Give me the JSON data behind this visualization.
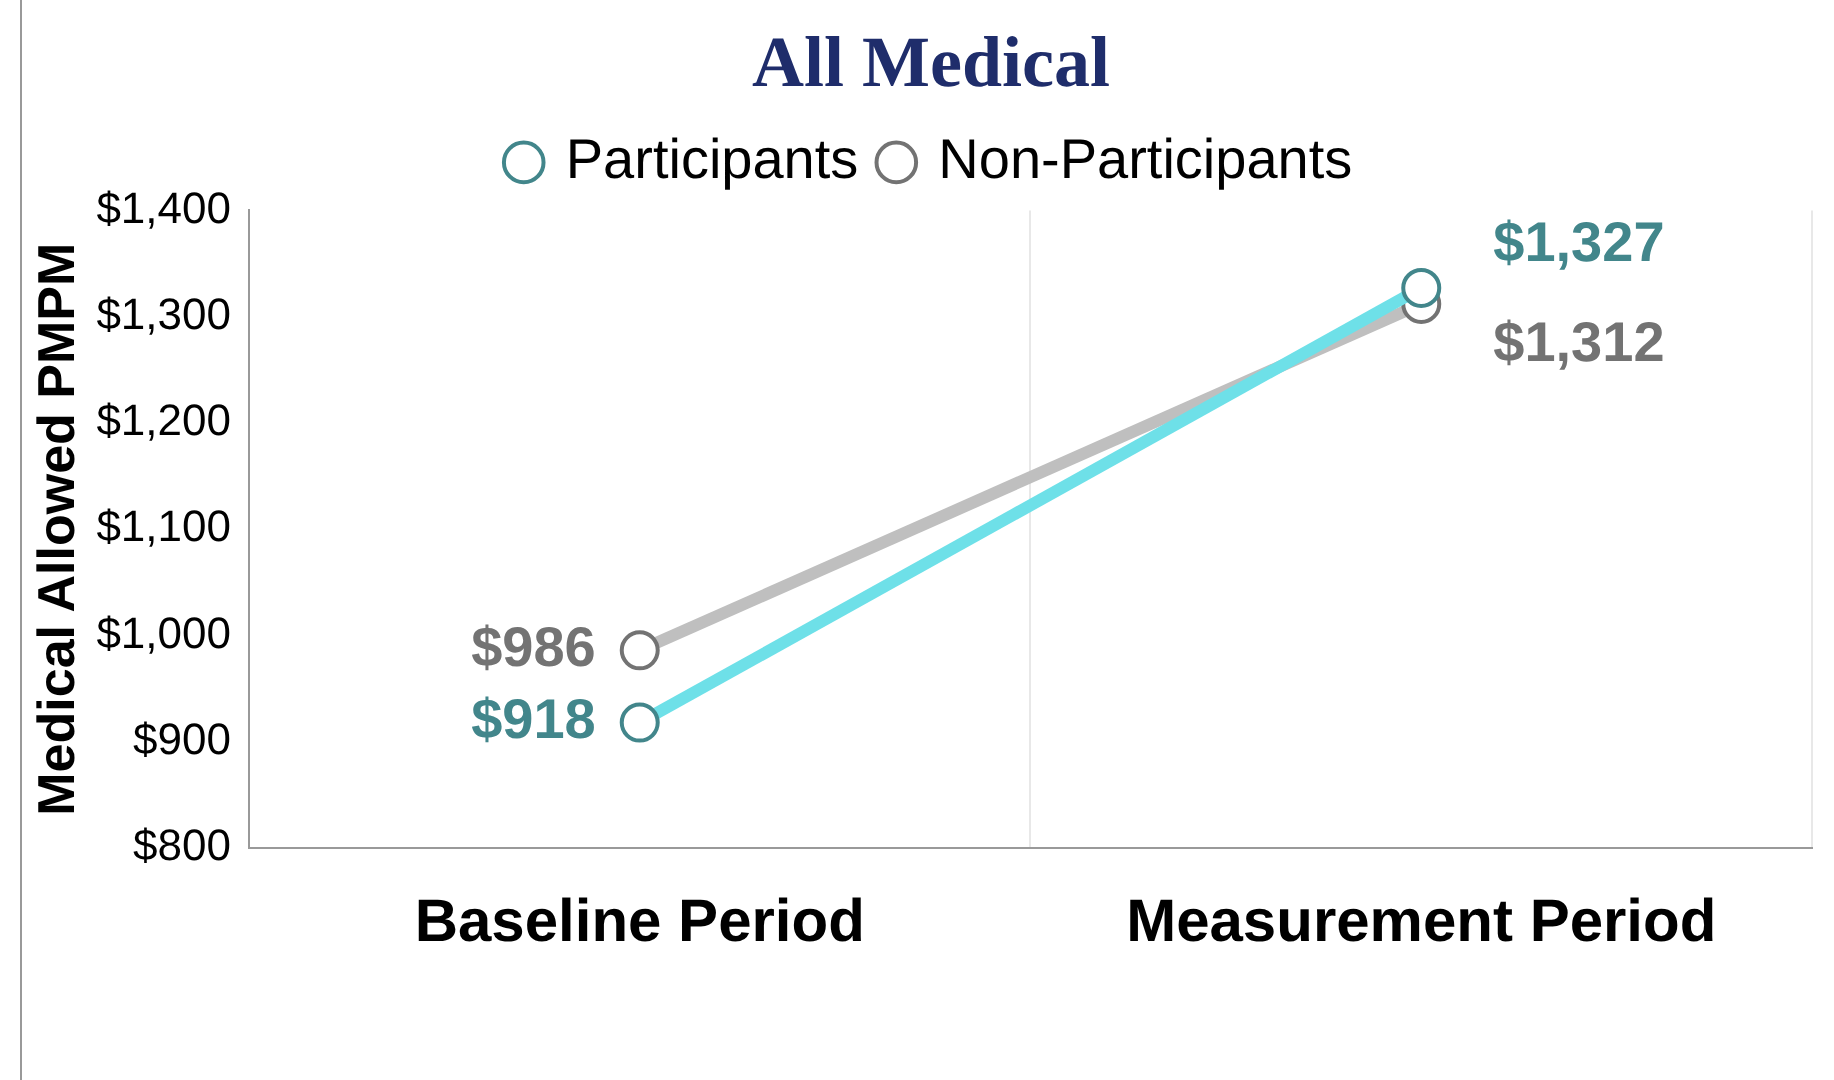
{
  "chart_data": {
    "type": "line",
    "title": "All Medical",
    "ylabel": "Medical Allowed PMPM",
    "categories": [
      "Baseline Period",
      "Measurement Period"
    ],
    "series": [
      {
        "name": "Non-Participants",
        "color": "#bfbfbf",
        "values": [
          986,
          1312
        ],
        "value_labels": [
          "$986",
          "$1,312"
        ]
      },
      {
        "name": "Participants",
        "color": "#6ee0e8",
        "values": [
          918,
          1327
        ],
        "value_labels": [
          "$918",
          "$1,327"
        ]
      }
    ],
    "ylim": [
      800,
      1400
    ],
    "yticks": [
      {
        "value": 800,
        "label": "$800"
      },
      {
        "value": 900,
        "label": "$900"
      },
      {
        "value": 1000,
        "label": "$1,000"
      },
      {
        "value": 1100,
        "label": "$1,100"
      },
      {
        "value": 1200,
        "label": "$1,200"
      },
      {
        "value": 1300,
        "label": "$1,300"
      },
      {
        "value": 1400,
        "label": "$1,400"
      }
    ],
    "grid": "x",
    "legend": "top",
    "marker": "circle",
    "line_style": "solid"
  }
}
